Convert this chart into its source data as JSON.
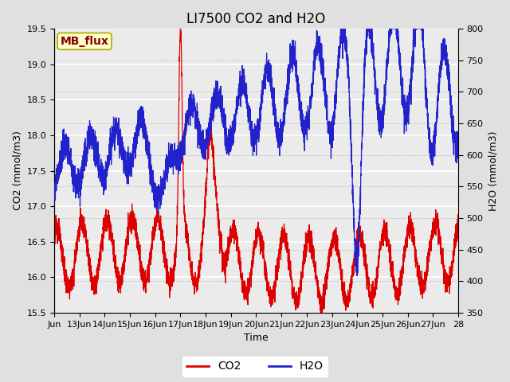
{
  "title": "LI7500 CO2 and H2O",
  "xlabel": "Time",
  "ylabel_left": "CO2 (mmol/m3)",
  "ylabel_right": "H2O (mmol/m3)",
  "co2_ylim": [
    15.5,
    19.5
  ],
  "h2o_ylim": [
    350,
    800
  ],
  "co2_yticks": [
    15.5,
    16.0,
    16.5,
    17.0,
    17.5,
    18.0,
    18.5,
    19.0,
    19.5
  ],
  "h2o_yticks": [
    350,
    400,
    450,
    500,
    550,
    600,
    650,
    700,
    750,
    800
  ],
  "x_tick_positions": [
    0,
    1,
    2,
    3,
    4,
    5,
    6,
    7,
    8,
    9,
    10,
    11,
    12,
    13,
    14,
    15,
    16
  ],
  "x_tick_labels": [
    "Jun",
    "13Jun",
    "14Jun",
    "15Jun",
    "16Jun",
    "17Jun",
    "18Jun",
    "19Jun",
    "20Jun",
    "21Jun",
    "22Jun",
    "23Jun",
    "24Jun",
    "25Jun",
    "26Jun",
    "27Jun",
    "28"
  ],
  "co2_color": "#dd0000",
  "h2o_color": "#2222cc",
  "bg_color": "#e0e0e0",
  "plot_bg_color": "#ebebeb",
  "legend_box_facecolor": "#ffffcc",
  "legend_box_edgecolor": "#aaaa00",
  "annotation_text": "MB_flux",
  "annotation_color": "#880000",
  "grid_color": "#ffffff",
  "title_fontsize": 12,
  "label_fontsize": 9,
  "tick_fontsize": 8,
  "legend_fontsize": 10,
  "linewidth_co2": 0.9,
  "linewidth_h2o": 0.9
}
